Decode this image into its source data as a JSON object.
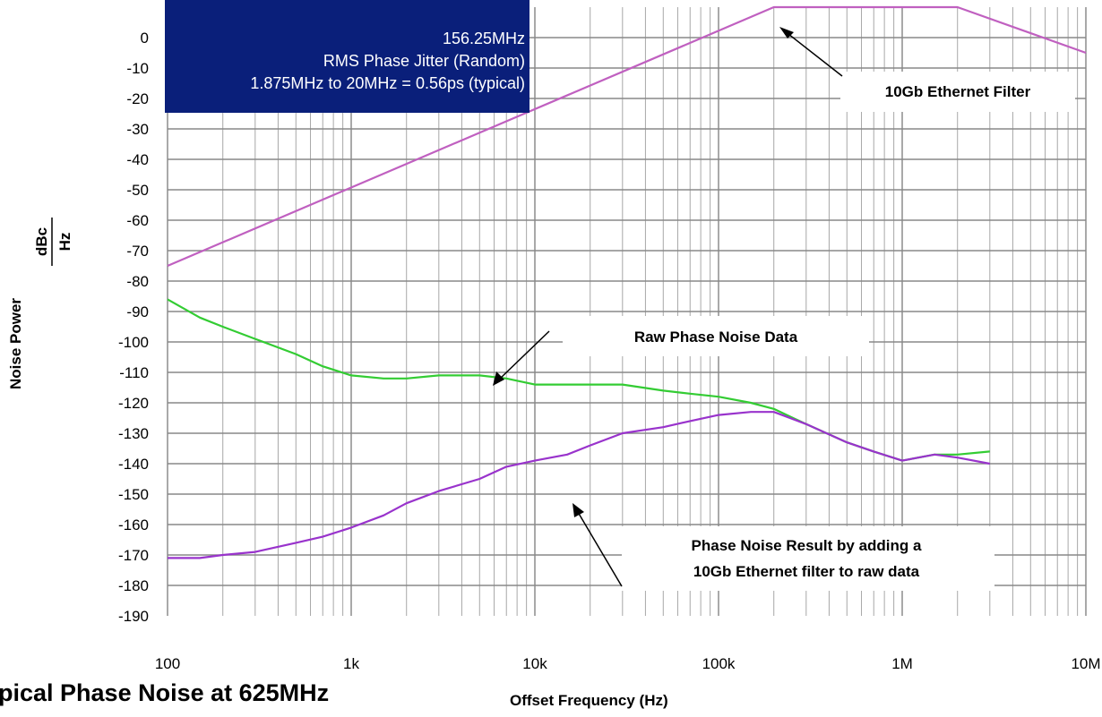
{
  "chart_data": {
    "type": "line",
    "caption": "pical Phase Noise at 625MHz",
    "xlabel": "Offset Frequency (Hz)",
    "ylabel_main": "Noise Power",
    "ylabel_frac_top": "dBc",
    "ylabel_frac_bottom": "Hz",
    "x_scale": "log",
    "xlim": [
      100,
      10000000
    ],
    "ylim": [
      -190,
      10
    ],
    "x_ticks": [
      {
        "value": 100,
        "label": "100"
      },
      {
        "value": 1000,
        "label": "1k"
      },
      {
        "value": 10000,
        "label": "10k"
      },
      {
        "value": 100000,
        "label": "100k"
      },
      {
        "value": 1000000,
        "label": "1M"
      },
      {
        "value": 10000000,
        "label": "10M"
      }
    ],
    "y_ticks": [
      0,
      -10,
      -20,
      -30,
      -40,
      -50,
      -60,
      -70,
      -80,
      -90,
      -100,
      -110,
      -120,
      -130,
      -140,
      -150,
      -160,
      -170,
      -180,
      -190
    ],
    "grid": true,
    "info_box": {
      "lines": [
        "156.25MHz",
        "RMS Phase Jitter (Random)",
        "1.875MHz to 20MHz = 0.56ps (typical)"
      ],
      "background": "#0a1f7a"
    },
    "annotations": [
      {
        "id": "filter",
        "lines": [
          "10Gb Ethernet Filter"
        ],
        "arrow_to": [
          150000,
          2
        ]
      },
      {
        "id": "raw",
        "lines": [
          "Raw Phase Noise Data"
        ],
        "arrow_to": [
          1500,
          -112
        ]
      },
      {
        "id": "result",
        "lines": [
          "Phase Noise Result by adding a",
          "10Gb Ethernet filter to raw data"
        ],
        "arrow_to": [
          4200,
          -147
        ]
      }
    ],
    "series": [
      {
        "id": "filter",
        "color": "#c060c0",
        "x": [
          100,
          200000,
          2000000,
          10000000
        ],
        "y": [
          -75,
          10,
          10,
          -5
        ]
      },
      {
        "id": "raw",
        "color": "#33cc33",
        "x": [
          100,
          150,
          200,
          300,
          500,
          700,
          1000,
          1500,
          2000,
          3000,
          5000,
          7000,
          10000,
          15000,
          20000,
          30000,
          50000,
          70000,
          100000,
          150000,
          200000,
          300000,
          500000,
          700000,
          1000000,
          1500000,
          2000000,
          3000000
        ],
        "y": [
          -86,
          -92,
          -95,
          -99,
          -104,
          -108,
          -111,
          -112,
          -112,
          -111,
          -111,
          -112,
          -114,
          -114,
          -114,
          -114,
          -116,
          -117,
          -118,
          -120,
          -122,
          -127,
          -133,
          -136,
          -139,
          -137,
          -137,
          -136
        ]
      },
      {
        "id": "result",
        "color": "#9933cc",
        "x": [
          100,
          150,
          200,
          300,
          500,
          700,
          1000,
          1500,
          2000,
          3000,
          5000,
          7000,
          10000,
          15000,
          20000,
          30000,
          50000,
          70000,
          100000,
          150000,
          200000,
          300000,
          500000,
          700000,
          1000000,
          1500000,
          2000000,
          3000000
        ],
        "y": [
          -171,
          -171,
          -170,
          -169,
          -166,
          -164,
          -161,
          -157,
          -153,
          -149,
          -145,
          -141,
          -139,
          -137,
          -134,
          -130,
          -128,
          -126,
          -124,
          -123,
          -123,
          -127,
          -133,
          -136,
          -139,
          -137,
          -138,
          -140
        ]
      }
    ]
  }
}
